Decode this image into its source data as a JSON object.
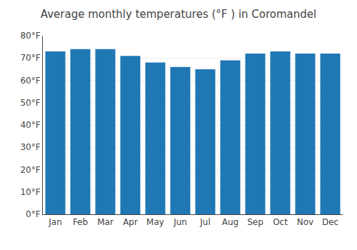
{
  "chart_data": {
    "type": "bar",
    "title": "Average monthly temperatures (°F ) in Coromandel",
    "categories": [
      "Jan",
      "Feb",
      "Mar",
      "Apr",
      "May",
      "Jun",
      "Jul",
      "Aug",
      "Sep",
      "Oct",
      "Nov",
      "Dec"
    ],
    "values": [
      73,
      74,
      74,
      71,
      68,
      66,
      65,
      69,
      72,
      73,
      72,
      72
    ],
    "ylim": [
      0,
      80
    ],
    "yticks": [
      {
        "value": 0,
        "label": "0°F"
      },
      {
        "value": 10,
        "label": "10°F"
      },
      {
        "value": 20,
        "label": "20°F"
      },
      {
        "value": 30,
        "label": "30°F"
      },
      {
        "value": 40,
        "label": "40°F"
      },
      {
        "value": 50,
        "label": "50°F"
      },
      {
        "value": 60,
        "label": "60°F"
      },
      {
        "value": 70,
        "label": "70°F"
      },
      {
        "value": 80,
        "label": "80°F"
      }
    ],
    "grid": true
  }
}
